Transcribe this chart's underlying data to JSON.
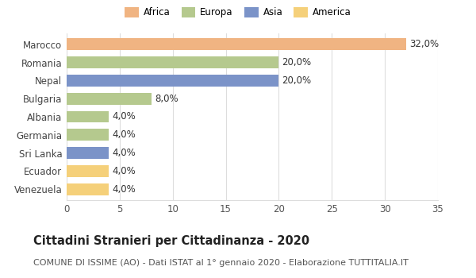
{
  "countries": [
    "Marocco",
    "Romania",
    "Nepal",
    "Bulgaria",
    "Albania",
    "Germania",
    "Sri Lanka",
    "Ecuador",
    "Venezuela"
  ],
  "values": [
    32.0,
    20.0,
    20.0,
    8.0,
    4.0,
    4.0,
    4.0,
    4.0,
    4.0
  ],
  "continents": [
    "Africa",
    "Europa",
    "Asia",
    "Europa",
    "Europa",
    "Europa",
    "Asia",
    "America",
    "America"
  ],
  "bar_colors": [
    "#F0B482",
    "#B5C98E",
    "#7B93C8",
    "#B5C98E",
    "#B5C98E",
    "#B5C98E",
    "#7B93C8",
    "#F5D07A",
    "#F5D07A"
  ],
  "xlim": [
    0,
    35
  ],
  "xticks": [
    0,
    5,
    10,
    15,
    20,
    25,
    30,
    35
  ],
  "title": "Cittadini Stranieri per Cittadinanza - 2020",
  "subtitle": "COMUNE DI ISSIME (AO) - Dati ISTAT al 1° gennaio 2020 - Elaborazione TUTTITALIA.IT",
  "legend_labels": [
    "Africa",
    "Europa",
    "Asia",
    "America"
  ],
  "legend_colors": [
    "#F0B482",
    "#B5C98E",
    "#7B93C8",
    "#F5D07A"
  ],
  "background_color": "#ffffff",
  "grid_color": "#dddddd",
  "label_fontsize": 8.5,
  "title_fontsize": 10.5,
  "subtitle_fontsize": 8.0
}
